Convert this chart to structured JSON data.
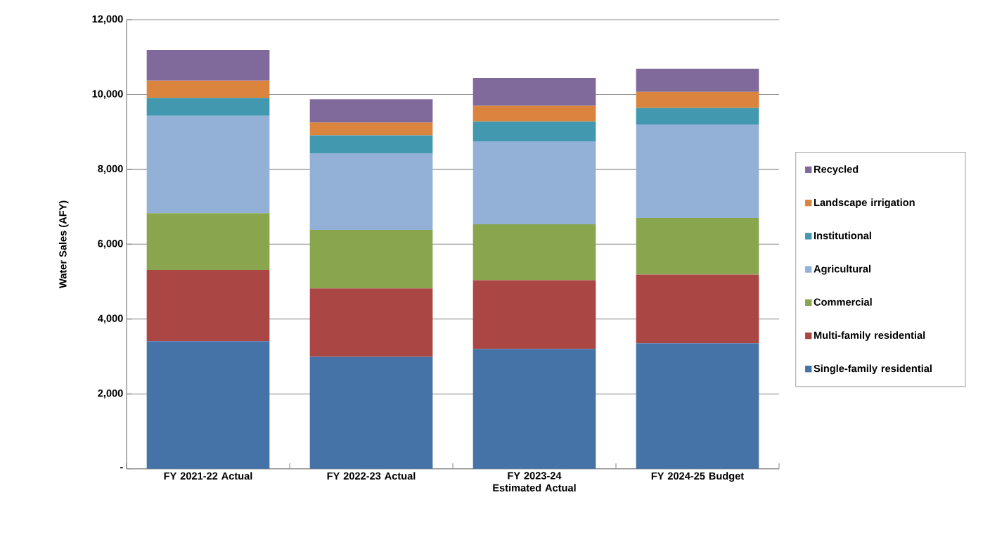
{
  "chart_data": {
    "type": "bar",
    "stacked": true,
    "ylabel": "Water Sales (AFY)",
    "categories": [
      "FY 2021-22 Actual",
      "FY 2022-23 Actual",
      "FY 2023-24 Estimated Actual",
      "FY 2024-25 Budget"
    ],
    "series": [
      {
        "name": "Single-family residential",
        "color": "#4572a7",
        "values": [
          3410,
          2990,
          3200,
          3350
        ]
      },
      {
        "name": "Multi-family residential",
        "color": "#aa4643",
        "values": [
          1900,
          1830,
          1840,
          1840
        ]
      },
      {
        "name": "Commercial",
        "color": "#89a54e",
        "values": [
          1520,
          1560,
          1490,
          1510
        ]
      },
      {
        "name": "Agricultural",
        "color": "#93b1d6",
        "values": [
          2600,
          2050,
          2220,
          2500
        ]
      },
      {
        "name": "Institutional",
        "color": "#4198af",
        "values": [
          480,
          480,
          530,
          440
        ]
      },
      {
        "name": "Landscape irrigation",
        "color": "#db843d",
        "values": [
          460,
          340,
          420,
          430
        ]
      },
      {
        "name": "Recycled",
        "color": "#80699b",
        "values": [
          820,
          620,
          740,
          620
        ]
      }
    ],
    "ylim": [
      0,
      12000
    ],
    "yticks": [
      {
        "value": 0,
        "label": "-"
      },
      {
        "value": 2000,
        "label": "2,000"
      },
      {
        "value": 4000,
        "label": "4,000"
      },
      {
        "value": 6000,
        "label": "6,000"
      },
      {
        "value": 8000,
        "label": "8,000"
      },
      {
        "value": 10000,
        "label": "10,000"
      },
      {
        "value": 12000,
        "label": "12,000"
      }
    ],
    "grid": "y",
    "legend": "right"
  }
}
